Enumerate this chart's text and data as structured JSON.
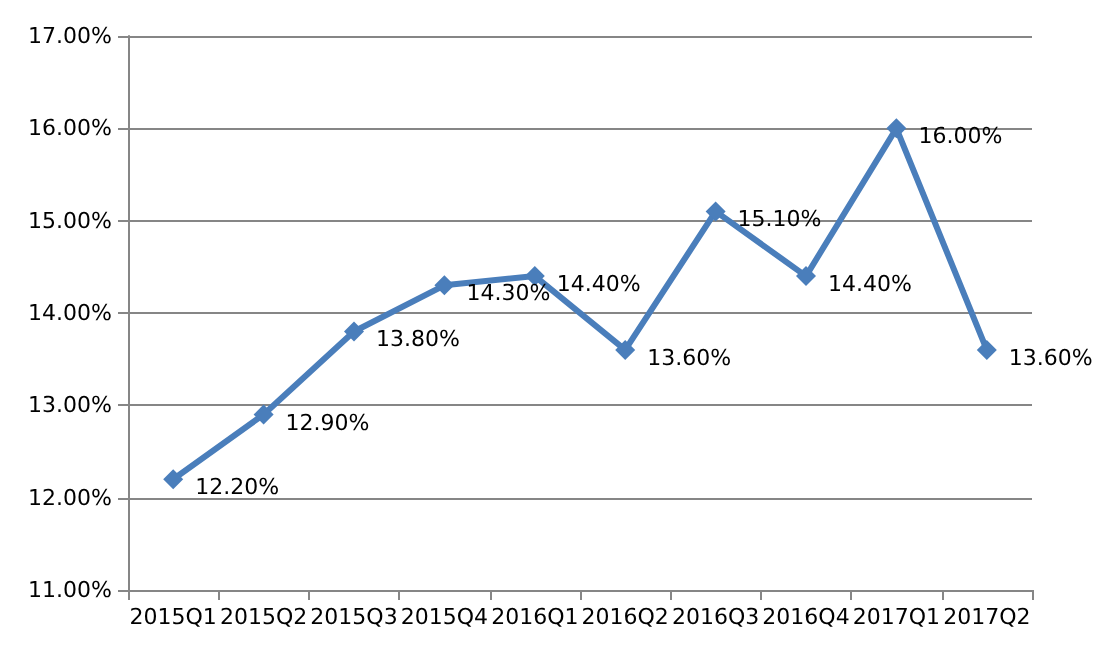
{
  "chart_data": {
    "type": "line",
    "categories": [
      "2015Q1",
      "2015Q2",
      "2015Q3",
      "2015Q4",
      "2016Q1",
      "2016Q2",
      "2016Q3",
      "2016Q4",
      "2017Q1",
      "2017Q2"
    ],
    "series": [
      {
        "color": "#4a7ebb",
        "values": [
          12.2,
          12.9,
          13.8,
          14.3,
          14.4,
          13.6,
          15.1,
          14.4,
          16.0,
          13.6
        ],
        "value_labels": [
          "12.20%",
          "12.90%",
          "13.80%",
          "14.30%",
          "14.40%",
          "13.60%",
          "15.10%",
          "14.40%",
          "16.00%",
          "13.60%"
        ]
      }
    ],
    "ylim": [
      11,
      17
    ],
    "yticks": [
      {
        "value": 11,
        "label": "11.00%"
      },
      {
        "value": 12,
        "label": "12.00%"
      },
      {
        "value": 13,
        "label": "13.00%"
      },
      {
        "value": 14,
        "label": "14.00%"
      },
      {
        "value": 15,
        "label": "15.00%"
      },
      {
        "value": 16,
        "label": "16.00%"
      },
      {
        "value": 17,
        "label": "17.00%"
      }
    ],
    "grid": "y",
    "marker": "diamond",
    "line_style": "solid"
  }
}
